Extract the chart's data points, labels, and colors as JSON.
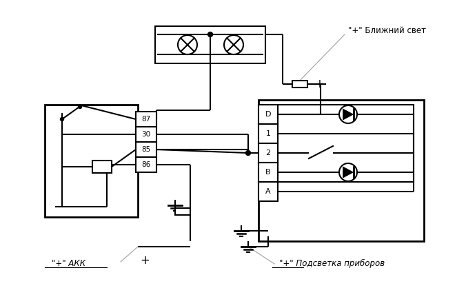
{
  "bg_color": "#ffffff",
  "line_color": "#000000",
  "lw": 1.5,
  "lw_thick": 2.0,
  "fig_width": 6.76,
  "fig_height": 4.18,
  "dpi": 100,
  "label_blizhniy": "\"+\" Ближний свет",
  "label_akk": "\"+\" АКК",
  "label_podsveta": "\"+\" Подсветка приборов",
  "label_plus_fuse": "+",
  "label_plus_akk": "+",
  "relay_pins": [
    "87",
    "30",
    "85",
    "86"
  ],
  "switch_pins": [
    "D",
    "1",
    "2",
    "B",
    "A"
  ],
  "gray": "#aaaaaa"
}
